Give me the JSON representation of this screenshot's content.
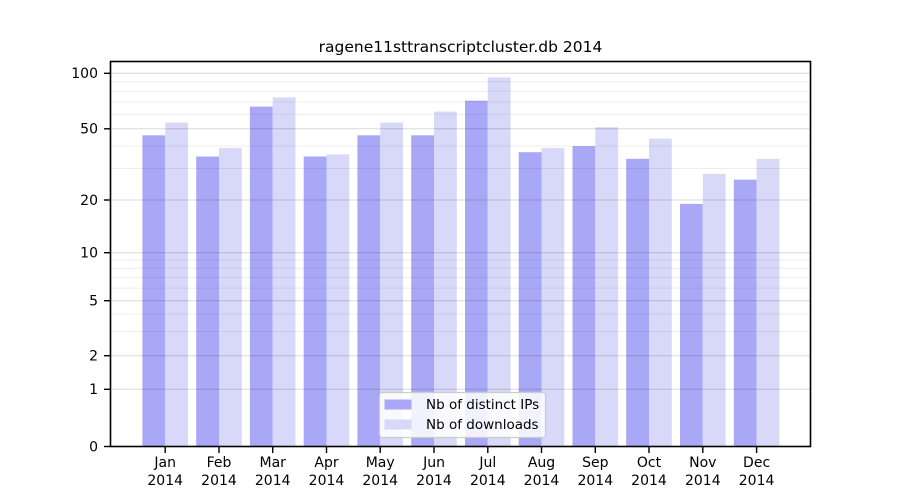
{
  "chart_data": {
    "type": "bar",
    "title": "ragene11sttranscriptcluster.db 2014",
    "x_year_label": "2014",
    "categories": [
      "Jan",
      "Feb",
      "Mar",
      "Apr",
      "May",
      "Jun",
      "Jul",
      "Aug",
      "Sep",
      "Oct",
      "Nov",
      "Dec"
    ],
    "y_ticks": [
      0,
      1,
      2,
      5,
      10,
      20,
      50,
      100
    ],
    "y_minor_gridlines": [
      3,
      4,
      6,
      7,
      8,
      9,
      30,
      40,
      60,
      70,
      80,
      90
    ],
    "yscale": "log (0 pinned at baseline)",
    "ylim": [
      0,
      110
    ],
    "grid": true,
    "legend_position": "inside-bottom-center",
    "series": [
      {
        "name": "Nb of distinct IPs",
        "color": "#a8a8f6",
        "values": [
          46,
          35,
          66,
          35,
          46,
          46,
          71,
          37,
          40,
          34,
          19,
          26
        ]
      },
      {
        "name": "Nb of downloads",
        "color": "#d8d8f8",
        "values": [
          54,
          39,
          74,
          36,
          54,
          62,
          95,
          39,
          51,
          44,
          28,
          34
        ]
      }
    ]
  }
}
